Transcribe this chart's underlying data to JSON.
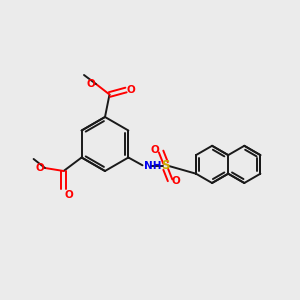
{
  "background_color": "#ebebeb",
  "bond_color": "#1a1a1a",
  "bond_width": 1.4,
  "oxygen_color": "#ff0000",
  "nitrogen_color": "#0000ee",
  "sulfur_color": "#ccaa00",
  "figsize": [
    3.0,
    3.0
  ],
  "dpi": 100,
  "xlim": [
    0,
    10
  ],
  "ylim": [
    0,
    10
  ]
}
